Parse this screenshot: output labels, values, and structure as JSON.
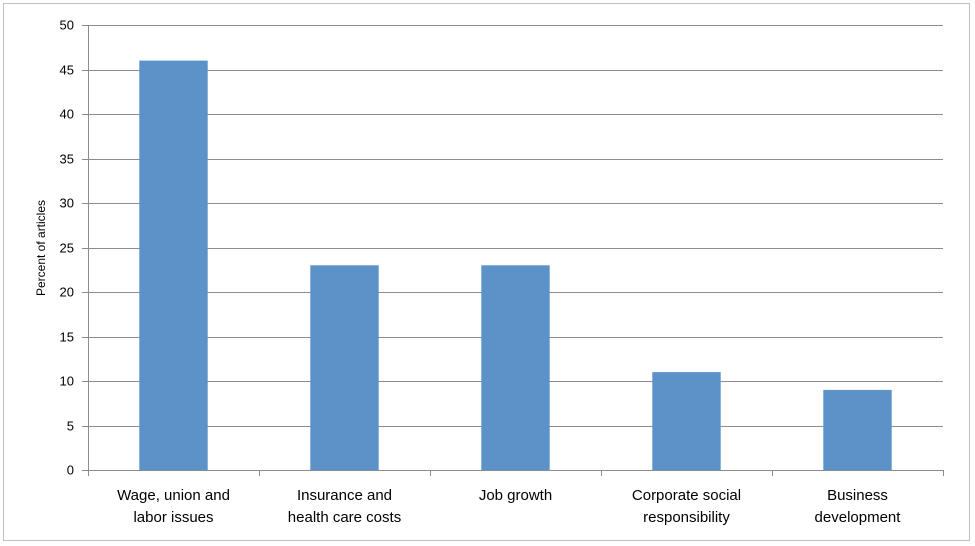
{
  "chart_data": {
    "type": "bar",
    "title": "",
    "xlabel": "",
    "ylabel": "Percent of articles",
    "categories": [
      [
        "Wage, union and",
        "labor issues"
      ],
      [
        "Insurance and",
        "health care costs"
      ],
      [
        "Job growth"
      ],
      [
        "Corporate social",
        "responsibility"
      ],
      [
        "Business",
        "development"
      ]
    ],
    "values": [
      46,
      23,
      23,
      11,
      9
    ],
    "ylim": [
      0,
      50
    ],
    "yticks": [
      0,
      5,
      10,
      15,
      20,
      25,
      30,
      35,
      40,
      45,
      50
    ],
    "grid": true,
    "legend": "none",
    "bar_color": "#5b93c9",
    "grid_color": "#8c8c8c"
  }
}
